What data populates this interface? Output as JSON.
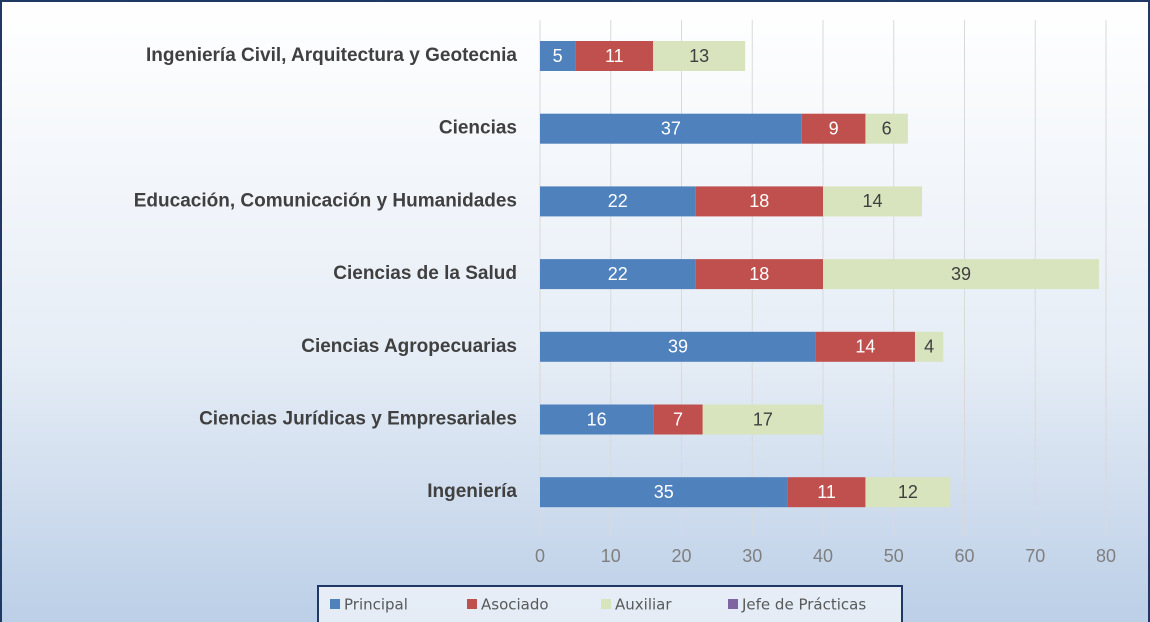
{
  "chart_data": {
    "type": "stacked_barh",
    "categories": [
      "Ingeniería Civil, Arquitectura y Geotecnia",
      "Ciencias",
      "Educación, Comunicación y Humanidades",
      "Ciencias de la Salud",
      "Ciencias Agropecuarias",
      "Ciencias Jurídicas y Empresariales",
      "Ingeniería"
    ],
    "series": [
      {
        "name": "Principal",
        "color": "#4f81bd",
        "values": [
          5,
          37,
          22,
          22,
          39,
          16,
          35
        ]
      },
      {
        "name": "Asociado",
        "color": "#c0504d",
        "values": [
          11,
          9,
          18,
          18,
          14,
          7,
          11
        ]
      },
      {
        "name": "Auxiliar",
        "color": "#d7e4bd",
        "values": [
          13,
          6,
          14,
          39,
          4,
          17,
          12
        ]
      },
      {
        "name": "Jefe de Prácticas",
        "color": "#8064a2",
        "values": [
          0,
          0,
          0,
          0,
          0,
          0,
          0
        ]
      }
    ],
    "xlim": [
      0,
      80
    ],
    "xticks": [
      0,
      10,
      20,
      30,
      40,
      50,
      60,
      70,
      80
    ],
    "grid": true,
    "legend": "bottom"
  }
}
